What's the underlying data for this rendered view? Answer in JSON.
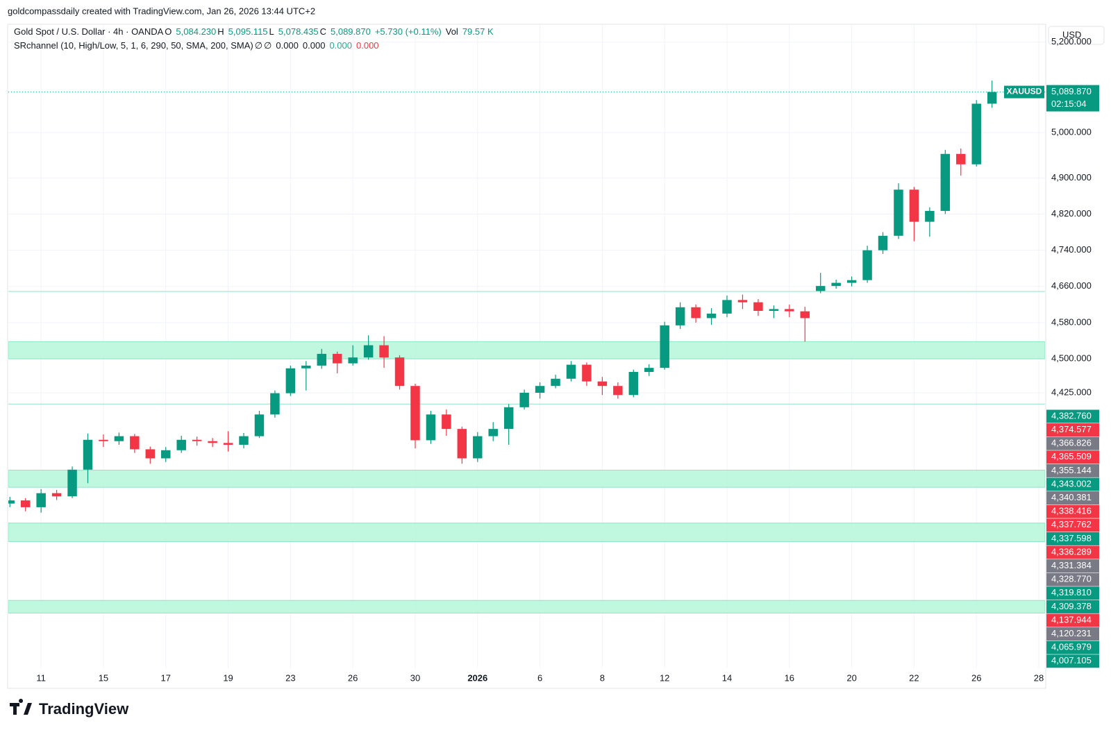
{
  "chart_data": {
    "type": "candlestick",
    "credit": "goldcompassdaily created with TradingView.com, Jan 26, 2026 13:44 UTC+2",
    "legend": [
      {
        "text": "Gold Spot / U.S. Dollar · 4h · OANDA",
        "color": "#131722"
      },
      {
        "text": "O",
        "color": "#131722"
      },
      {
        "text": "5,084.230",
        "color": "#089981"
      },
      {
        "text": "H",
        "color": "#131722"
      },
      {
        "text": "5,095.115",
        "color": "#089981"
      },
      {
        "text": "L",
        "color": "#131722"
      },
      {
        "text": "5,078.435",
        "color": "#089981"
      },
      {
        "text": "C",
        "color": "#131722"
      },
      {
        "text": "5,089.870",
        "color": "#089981"
      },
      {
        "text": "+5.730 (+0.11%)",
        "color": "#089981"
      },
      {
        "text": "Vol",
        "color": "#131722"
      },
      {
        "text": "79.57 K",
        "color": "#089981"
      }
    ],
    "indicator": [
      {
        "text": "SRchannel (10, High/Low, 5, 1, 6, 290, 50, SMA, 200, SMA)",
        "color": "#131722"
      },
      {
        "text": "∅",
        "color": "#131722"
      },
      {
        "text": "∅",
        "color": "#131722"
      },
      {
        "text": "0.000",
        "color": "#131722"
      },
      {
        "text": "0.000",
        "color": "#131722"
      },
      {
        "text": "0.000",
        "color": "#22ab94"
      },
      {
        "text": "0.000",
        "color": "#f23645"
      }
    ],
    "currency": "USD",
    "symbol": "XAUUSD",
    "countdown": "02:15:04",
    "logo": "TradingView",
    "up_color": "#089981",
    "down_color": "#f23645",
    "x": [
      -1,
      -0.5,
      0,
      0.5,
      1,
      1.5,
      2,
      2.5,
      3,
      3.5,
      4,
      4.5,
      5,
      5.5,
      6,
      6.5,
      7,
      7.5,
      8,
      8.5,
      9,
      9.5,
      10,
      10.5,
      11,
      11.5,
      12,
      12.5,
      13,
      13.5,
      14,
      14.5,
      15,
      15.5,
      16,
      16.5,
      17,
      17.5,
      18,
      18.5,
      19,
      19.5,
      20,
      20.5,
      21,
      21.5,
      22,
      22.5,
      23,
      23.5,
      24,
      24.5,
      25,
      25.5,
      26,
      26.5,
      27,
      27.5,
      28,
      28.5,
      29,
      29.5,
      30,
      30.5
    ],
    "open": [
      4180,
      4187,
      4172,
      4203,
      4196,
      4255,
      4321,
      4318,
      4329,
      4300,
      4280,
      4298,
      4321,
      4318,
      4314,
      4310,
      4329,
      4377,
      4424,
      4479,
      4485,
      4511,
      4490,
      4503,
      4530,
      4503,
      4440,
      4320,
      4377,
      4345,
      4280,
      4329,
      4345,
      4393,
      4425,
      4440,
      4456,
      4487,
      4450,
      4440,
      4420,
      4471,
      4480,
      4574,
      4614,
      4590,
      4600,
      4630,
      4625,
      4606,
      4610,
      4605,
      4650,
      4661,
      4668,
      4674,
      4740,
      4772,
      4874,
      4803,
      4827,
      4953,
      4930,
      5064
    ],
    "high": [
      4195,
      4192,
      4212,
      4210,
      4262,
      4335,
      4333,
      4337,
      4334,
      4306,
      4305,
      4330,
      4328,
      4325,
      4340,
      4336,
      4385,
      4430,
      4485,
      4495,
      4522,
      4516,
      4530,
      4552,
      4550,
      4508,
      4445,
      4385,
      4388,
      4350,
      4338,
      4360,
      4400,
      4432,
      4448,
      4465,
      4495,
      4492,
      4460,
      4448,
      4476,
      4488,
      4582,
      4625,
      4620,
      4612,
      4640,
      4642,
      4632,
      4618,
      4620,
      4615,
      4690,
      4675,
      4682,
      4750,
      4780,
      4888,
      4880,
      4835,
      4962,
      4965,
      5072,
      5115
    ],
    "low": [
      4172,
      4163,
      4160,
      4188,
      4192,
      4225,
      4305,
      4310,
      4292,
      4268,
      4272,
      4292,
      4308,
      4305,
      4295,
      4302,
      4325,
      4370,
      4418,
      4430,
      4478,
      4468,
      4485,
      4498,
      4480,
      4432,
      4302,
      4312,
      4330,
      4268,
      4272,
      4318,
      4310,
      4388,
      4412,
      4435,
      4450,
      4440,
      4420,
      4412,
      4415,
      4462,
      4476,
      4566,
      4580,
      4575,
      4592,
      4610,
      4595,
      4590,
      4592,
      4538,
      4645,
      4655,
      4660,
      4668,
      4732,
      4765,
      4760,
      4770,
      4820,
      4905,
      4925,
      5055
    ],
    "close": [
      4187,
      4172,
      4203,
      4196,
      4255,
      4321,
      4318,
      4329,
      4300,
      4280,
      4298,
      4321,
      4318,
      4314,
      4310,
      4329,
      4377,
      4424,
      4479,
      4485,
      4511,
      4490,
      4503,
      4530,
      4503,
      4440,
      4320,
      4377,
      4345,
      4280,
      4329,
      4345,
      4393,
      4425,
      4440,
      4456,
      4487,
      4450,
      4440,
      4420,
      4471,
      4480,
      4574,
      4614,
      4590,
      4600,
      4630,
      4625,
      4606,
      4610,
      4605,
      4590,
      4661,
      4668,
      4674,
      4740,
      4772,
      4874,
      4803,
      4827,
      4953,
      4930,
      5064,
      5090
    ],
    "zones": [
      [
        4500,
        4538
      ],
      [
        4216,
        4254
      ],
      [
        4096,
        4137
      ],
      [
        3938,
        3966
      ]
    ],
    "zone_color": "#b9f6dc",
    "sr_lines": [
      4649,
      4400
    ],
    "sr_line_color": "#8ee6c4",
    "last_price": {
      "value": 5089.87,
      "label": "5,089.870"
    },
    "xlim": [
      -1.05,
      32.2
    ],
    "ylim": [
      3816,
      5238
    ],
    "xticks": [
      {
        "value": 0,
        "label": "11"
      },
      {
        "value": 2,
        "label": "15"
      },
      {
        "value": 4,
        "label": "17"
      },
      {
        "value": 6,
        "label": "19"
      },
      {
        "value": 8,
        "label": "23"
      },
      {
        "value": 10,
        "label": "26"
      },
      {
        "value": 12,
        "label": "30"
      },
      {
        "value": 14,
        "label": "2026"
      },
      {
        "value": 16,
        "label": "6"
      },
      {
        "value": 18,
        "label": "8"
      },
      {
        "value": 20,
        "label": "12"
      },
      {
        "value": 22,
        "label": "14"
      },
      {
        "value": 24,
        "label": "16"
      },
      {
        "value": 26,
        "label": "20"
      },
      {
        "value": 28,
        "label": "22"
      },
      {
        "value": 30,
        "label": "26"
      },
      {
        "value": 32,
        "label": "28"
      }
    ],
    "yticks": [
      {
        "value": 5200,
        "label": "5,200.000"
      },
      {
        "value": 5000,
        "label": "5,000.000"
      },
      {
        "value": 4900,
        "label": "4,900.000"
      },
      {
        "value": 4820,
        "label": "4,820.000"
      },
      {
        "value": 4740,
        "label": "4,740.000"
      },
      {
        "value": 4660,
        "label": "4,660.000"
      },
      {
        "value": 4580,
        "label": "4,580.000"
      },
      {
        "value": 4500,
        "label": "4,500.000"
      },
      {
        "value": 4425,
        "label": "4,425.000"
      }
    ],
    "grid": true,
    "price_labels": [
      {
        "label": "4,382.760",
        "color": "#089981"
      },
      {
        "label": "4,374.577",
        "color": "#f23645"
      },
      {
        "label": "4,366.826",
        "color": "#787b86"
      },
      {
        "label": "4,365.509",
        "color": "#f23645"
      },
      {
        "label": "4,355.144",
        "color": "#787b86"
      },
      {
        "label": "4,343.002",
        "color": "#089981"
      },
      {
        "label": "4,340.381",
        "color": "#787b86"
      },
      {
        "label": "4,338.416",
        "color": "#f23645"
      },
      {
        "label": "4,337.762",
        "color": "#f23645"
      },
      {
        "label": "4,337.598",
        "color": "#089981"
      },
      {
        "label": "4,336.289",
        "color": "#f23645"
      },
      {
        "label": "4,331.384",
        "color": "#787b86"
      },
      {
        "label": "4,328.770",
        "color": "#787b86"
      },
      {
        "label": "4,319.810",
        "color": "#089981"
      },
      {
        "label": "4,309.378",
        "color": "#089981"
      },
      {
        "label": "4,137.944",
        "color": "#f23645"
      },
      {
        "label": "4,120.231",
        "color": "#787b86"
      },
      {
        "label": "4,065.979",
        "color": "#089981"
      },
      {
        "label": "4,007.105",
        "color": "#089981"
      }
    ]
  }
}
